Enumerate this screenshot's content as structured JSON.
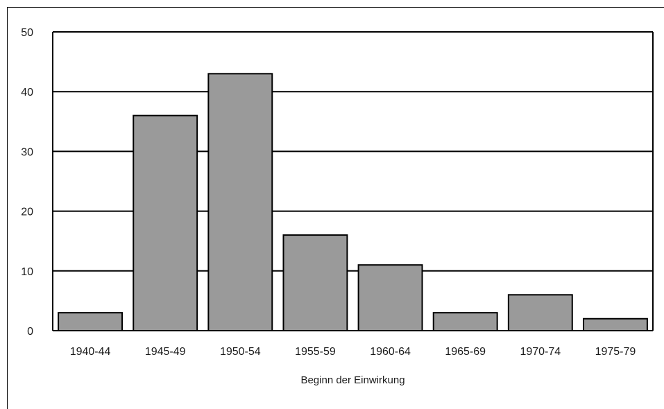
{
  "chart_data": {
    "type": "bar",
    "categories": [
      "1940-44",
      "1945-49",
      "1950-54",
      "1955-59",
      "1960-64",
      "1965-69",
      "1970-74",
      "1975-79"
    ],
    "values": [
      3,
      36,
      43,
      16,
      11,
      3,
      6,
      2
    ],
    "title": "",
    "xlabel": "Beginn der Einwirkung",
    "ylabel": "",
    "ylim": [
      0,
      50
    ],
    "yticks": [
      0,
      10,
      20,
      30,
      40,
      50
    ],
    "grid": true,
    "colors": {
      "bar": "#9a9a9a",
      "bar_stroke": "#000000",
      "grid": "#000000"
    }
  }
}
